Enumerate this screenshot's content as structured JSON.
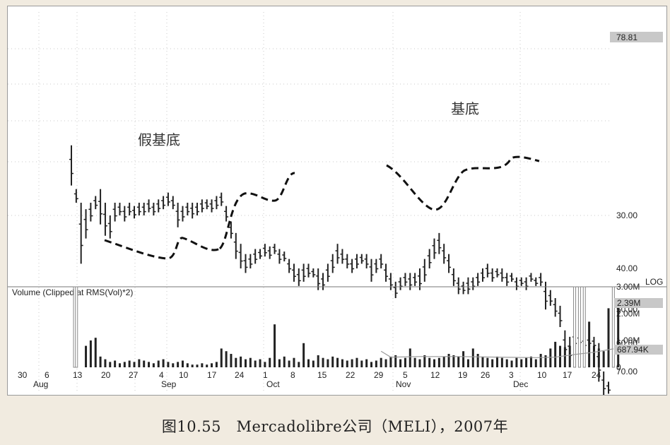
{
  "caption": "图10.55　Mercadolibre公司（MELI），2007年",
  "chart_data": {
    "type": "bar",
    "subtype": "ohlc-bar-chart",
    "price_scale": "log",
    "scale_label": "LOG",
    "last_price_label": "78.81",
    "price_ticks": [
      30,
      40,
      50,
      60,
      70
    ],
    "price_tick_labels": [
      "30.00",
      "40.00",
      "50.00",
      "60.00",
      "70.00"
    ],
    "volume_title": "Volume (Clipped at RMS(Vol)*2)",
    "volume_ticks": [
      0,
      1000000,
      2000000,
      3000000
    ],
    "volume_tick_labels": [
      "0",
      "1.00M",
      "2.00M",
      "3.00M"
    ],
    "volume_markers": [
      {
        "label": "2.39M",
        "value": 2390000
      },
      {
        "label": "687.94K",
        "value": 687940
      }
    ],
    "x_day_labels": [
      "30",
      "6",
      "13",
      "20",
      "27",
      "4",
      "10",
      "17",
      "24",
      "1",
      "8",
      "15",
      "22",
      "29",
      "5",
      "12",
      "19",
      "26",
      "3",
      "10",
      "17",
      "24"
    ],
    "x_month_labels": [
      "Aug",
      "Sep",
      "Oct",
      "Nov",
      "Dec"
    ],
    "annotations": [
      "假基底",
      "基底"
    ],
    "price_bars": [
      {
        "h": 25.5,
        "l": 20.5
      },
      {
        "h": 28,
        "l": 26
      },
      {
        "h": 39,
        "l": 28
      },
      {
        "h": 34,
        "l": 29
      },
      {
        "h": 31,
        "l": 28
      },
      {
        "h": 29,
        "l": 27
      },
      {
        "h": 31.5,
        "l": 26
      },
      {
        "h": 33.5,
        "l": 28
      },
      {
        "h": 34,
        "l": 30
      },
      {
        "h": 31,
        "l": 28
      },
      {
        "h": 30,
        "l": 28
      },
      {
        "h": 31,
        "l": 28.5
      },
      {
        "h": 30,
        "l": 28
      },
      {
        "h": 30.5,
        "l": 28.5
      },
      {
        "h": 30,
        "l": 28
      },
      {
        "h": 30,
        "l": 28
      },
      {
        "h": 29.5,
        "l": 27.5
      },
      {
        "h": 30,
        "l": 28
      },
      {
        "h": 29.5,
        "l": 27.5
      },
      {
        "h": 29,
        "l": 27
      },
      {
        "h": 28.5,
        "l": 26.5
      },
      {
        "h": 29,
        "l": 27
      },
      {
        "h": 32,
        "l": 28
      },
      {
        "h": 31,
        "l": 28.5
      },
      {
        "h": 30,
        "l": 28
      },
      {
        "h": 30.5,
        "l": 28
      },
      {
        "h": 30,
        "l": 28
      },
      {
        "h": 29.5,
        "l": 27.5
      },
      {
        "h": 29,
        "l": 27.5
      },
      {
        "h": 29.5,
        "l": 27.5
      },
      {
        "h": 29,
        "l": 27
      },
      {
        "h": 28.5,
        "l": 26.5
      },
      {
        "h": 31,
        "l": 28.5
      },
      {
        "h": 34,
        "l": 31
      },
      {
        "h": 38,
        "l": 33
      },
      {
        "h": 40,
        "l": 35
      },
      {
        "h": 41,
        "l": 37
      },
      {
        "h": 40,
        "l": 37
      },
      {
        "h": 39,
        "l": 36
      },
      {
        "h": 38,
        "l": 36
      },
      {
        "h": 37.5,
        "l": 35
      },
      {
        "h": 38,
        "l": 35.5
      },
      {
        "h": 37,
        "l": 35
      },
      {
        "h": 39,
        "l": 36
      },
      {
        "h": 38.5,
        "l": 36.5
      },
      {
        "h": 41,
        "l": 38
      },
      {
        "h": 43,
        "l": 39
      },
      {
        "h": 44,
        "l": 40
      },
      {
        "h": 43,
        "l": 39
      },
      {
        "h": 42,
        "l": 39
      },
      {
        "h": 42,
        "l": 40
      },
      {
        "h": 45,
        "l": 40
      },
      {
        "h": 45,
        "l": 41
      },
      {
        "h": 43,
        "l": 39
      },
      {
        "h": 41,
        "l": 37
      },
      {
        "h": 39,
        "l": 35
      },
      {
        "h": 39,
        "l": 36
      },
      {
        "h": 40,
        "l": 37
      },
      {
        "h": 41,
        "l": 38
      },
      {
        "h": 40,
        "l": 37
      },
      {
        "h": 39,
        "l": 37
      },
      {
        "h": 40,
        "l": 37
      },
      {
        "h": 43,
        "l": 38
      },
      {
        "h": 41,
        "l": 38
      },
      {
        "h": 40,
        "l": 37
      },
      {
        "h": 43,
        "l": 39
      },
      {
        "h": 45,
        "l": 41
      },
      {
        "h": 47,
        "l": 43
      },
      {
        "h": 45,
        "l": 42
      },
      {
        "h": 44,
        "l": 41
      },
      {
        "h": 45,
        "l": 41
      },
      {
        "h": 44,
        "l": 41
      },
      {
        "h": 45,
        "l": 40
      },
      {
        "h": 43,
        "l": 38
      },
      {
        "h": 40,
        "l": 36
      },
      {
        "h": 38,
        "l": 34
      },
      {
        "h": 37,
        "l": 33
      },
      {
        "h": 39,
        "l": 35
      },
      {
        "h": 41,
        "l": 37
      },
      {
        "h": 44,
        "l": 40
      },
      {
        "h": 46,
        "l": 42
      },
      {
        "h": 46,
        "l": 43
      },
      {
        "h": 46,
        "l": 42
      },
      {
        "h": 45,
        "l": 42
      },
      {
        "h": 44,
        "l": 41
      },
      {
        "h": 43,
        "l": 40
      },
      {
        "h": 42,
        "l": 39
      },
      {
        "h": 43,
        "l": 40
      },
      {
        "h": 42,
        "l": 40
      },
      {
        "h": 43,
        "l": 40
      },
      {
        "h": 44,
        "l": 41
      },
      {
        "h": 43,
        "l": 41
      },
      {
        "h": 45,
        "l": 42
      },
      {
        "h": 44,
        "l": 42
      },
      {
        "h": 45,
        "l": 42
      },
      {
        "h": 43,
        "l": 41
      },
      {
        "h": 44,
        "l": 42
      },
      {
        "h": 44,
        "l": 41
      },
      {
        "h": 50,
        "l": 43
      },
      {
        "h": 49,
        "l": 45
      },
      {
        "h": 52,
        "l": 47
      },
      {
        "h": 55,
        "l": 49
      },
      {
        "h": 65,
        "l": 56
      },
      {
        "h": 67,
        "l": 58
      },
      {
        "h": 62,
        "l": 56
      },
      {
        "h": 61,
        "l": 57
      },
      {
        "h": 62,
        "l": 58
      },
      {
        "h": 61,
        "l": 58
      },
      {
        "h": 62,
        "l": 58
      },
      {
        "h": 74,
        "l": 60
      },
      {
        "h": 80,
        "l": 70
      },
      {
        "h": 79,
        "l": 74
      }
    ],
    "volume_bars": [
      0,
      0,
      0,
      800000,
      1000000,
      1100000,
      400000,
      300000,
      200000,
      250000,
      150000,
      200000,
      250000,
      200000,
      300000,
      250000,
      200000,
      150000,
      250000,
      300000,
      200000,
      150000,
      200000,
      250000,
      150000,
      100000,
      100000,
      150000,
      100000,
      150000,
      200000,
      700000,
      600000,
      500000,
      350000,
      400000,
      300000,
      350000,
      250000,
      300000,
      200000,
      350000,
      1600000,
      300000,
      400000,
      250000,
      350000,
      200000,
      900000,
      300000,
      250000,
      450000,
      350000,
      300000,
      400000,
      350000,
      300000,
      250000,
      300000,
      350000,
      250000,
      300000,
      200000,
      250000,
      350000,
      300000,
      400000,
      450000,
      300000,
      350000,
      700000,
      350000,
      300000,
      450000,
      350000,
      300000,
      350000,
      400000,
      500000,
      450000,
      400000,
      600000,
      300000,
      700000,
      500000,
      400000,
      350000,
      300000,
      400000,
      350000,
      300000,
      250000,
      350000,
      300000,
      350000,
      400000,
      300000,
      500000,
      450000,
      700000,
      950000,
      800000,
      750000,
      800000,
      3000000,
      3000000,
      3000000,
      1700000,
      800000,
      700000,
      600000,
      2200000,
      3000000,
      2400000
    ],
    "volume_average": [
      null,
      null,
      null,
      null,
      null,
      null,
      null,
      null,
      null,
      null,
      null,
      null,
      null,
      null,
      null,
      null,
      null,
      null,
      null,
      null,
      null,
      null,
      null,
      null,
      null,
      null,
      null,
      null,
      null,
      null,
      null,
      null,
      null,
      null,
      null,
      null,
      null,
      null,
      null,
      null,
      null,
      null,
      null,
      null,
      null,
      null,
      null,
      null,
      null,
      null,
      null,
      null,
      null,
      null,
      null,
      null,
      null,
      null,
      null,
      null,
      null,
      null,
      null,
      null,
      null,
      null,
      null,
      null,
      null,
      null,
      null,
      null,
      null,
      null,
      null,
      null,
      null,
      null,
      null,
      null,
      null,
      null,
      null,
      null,
      null,
      null,
      null,
      null,
      null,
      null,
      null,
      null,
      null,
      null,
      null,
      null,
      null,
      null,
      null,
      null,
      null,
      null,
      null,
      null,
      null,
      null,
      null,
      null,
      null,
      null,
      null,
      null,
      null,
      null
    ],
    "avg_segment": [
      {
        "i": 64,
        "v": 600000
      },
      {
        "i": 66,
        "v": 380000
      },
      {
        "i": 72,
        "v": 400000
      },
      {
        "i": 80,
        "v": 400000
      },
      {
        "i": 88,
        "v": 380000
      },
      {
        "i": 96,
        "v": 360000
      },
      {
        "i": 100,
        "v": 380000
      },
      {
        "i": 104,
        "v": 480000
      },
      {
        "i": 108,
        "v": 560000
      },
      {
        "i": 112,
        "v": 688000
      }
    ]
  }
}
